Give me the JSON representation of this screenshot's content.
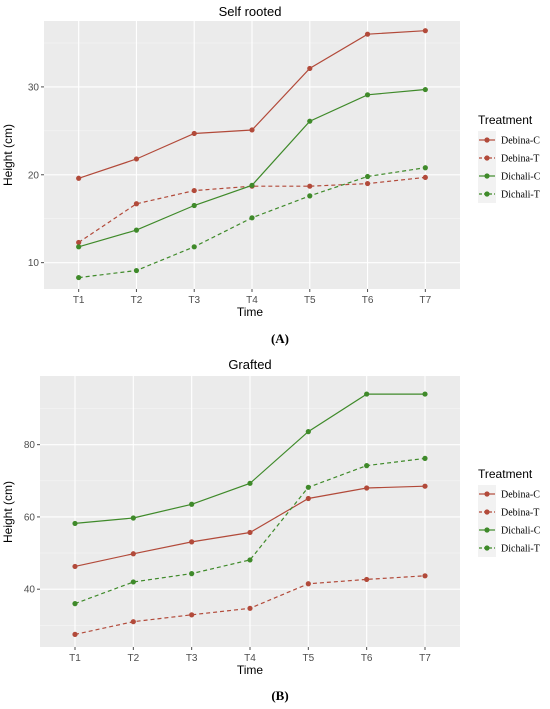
{
  "chart_data": [
    {
      "type": "line",
      "title": "Self rooted",
      "xlabel": "Time",
      "ylabel": "Height (cm)",
      "categories": [
        "T1",
        "T2",
        "T3",
        "T4",
        "T5",
        "T6",
        "T7"
      ],
      "yticks": [
        10,
        20,
        30
      ],
      "ylim": [
        7,
        37.5
      ],
      "legend_title": "Treatment",
      "legend_position": "right",
      "panel_label": "(A)",
      "series": [
        {
          "name": "Debina-C",
          "color": "#b24a3a",
          "dash": "solid",
          "values": [
            19.6,
            21.8,
            24.7,
            25.1,
            32.1,
            36.0,
            36.4
          ]
        },
        {
          "name": "Debina-T",
          "color": "#b24a3a",
          "dash": "dashed",
          "values": [
            12.3,
            16.7,
            18.2,
            18.7,
            18.7,
            19.0,
            19.7
          ]
        },
        {
          "name": "Dichali-C",
          "color": "#3f8a2a",
          "dash": "solid",
          "values": [
            11.8,
            13.7,
            16.5,
            18.8,
            26.1,
            29.1,
            29.7
          ]
        },
        {
          "name": "Dichali-T",
          "color": "#3f8a2a",
          "dash": "dashed",
          "values": [
            8.3,
            9.1,
            11.8,
            15.1,
            17.6,
            19.8,
            20.8
          ]
        }
      ]
    },
    {
      "type": "line",
      "title": "Grafted",
      "xlabel": "Time",
      "ylabel": "Height (cm)",
      "categories": [
        "T1",
        "T2",
        "T3",
        "T4",
        "T5",
        "T6",
        "T7"
      ],
      "yticks": [
        40,
        60,
        80
      ],
      "ylim": [
        24,
        99
      ],
      "legend_title": "Treatment",
      "legend_position": "right",
      "panel_label": "(B)",
      "series": [
        {
          "name": "Debina-C",
          "color": "#b24a3a",
          "dash": "solid",
          "values": [
            46.3,
            49.8,
            53.1,
            55.7,
            65.1,
            68.0,
            68.5
          ]
        },
        {
          "name": "Debina-T",
          "color": "#b24a3a",
          "dash": "dashed",
          "values": [
            27.5,
            31.0,
            32.9,
            34.7,
            41.5,
            42.7,
            43.7
          ]
        },
        {
          "name": "Dichali-C",
          "color": "#3f8a2a",
          "dash": "solid",
          "values": [
            58.2,
            59.7,
            63.5,
            69.3,
            83.6,
            94.0,
            94.0
          ]
        },
        {
          "name": "Dichali-T",
          "color": "#3f8a2a",
          "dash": "dashed",
          "values": [
            36.0,
            42.0,
            44.3,
            48.1,
            68.2,
            74.2,
            76.2
          ]
        }
      ]
    }
  ]
}
